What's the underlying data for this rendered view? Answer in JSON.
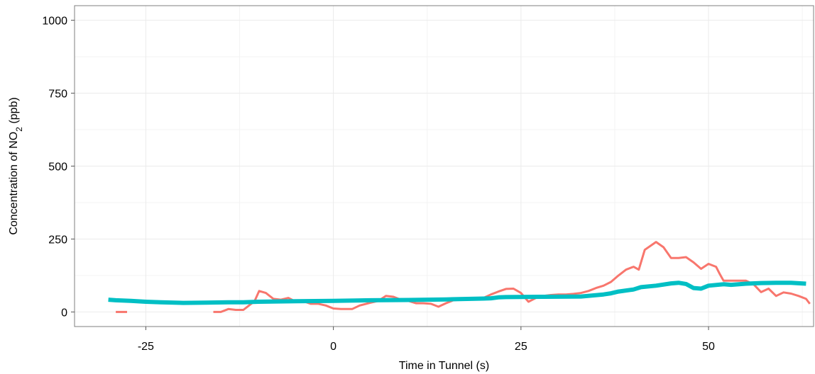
{
  "chart_data": {
    "type": "line",
    "xlabel": "Time in Tunnel (s)",
    "ylabel": {
      "prefix": "Concentration of NO",
      "subscript": "2",
      "suffix": " (ppb)"
    },
    "xlim": [
      -34.5,
      64
    ],
    "ylim": [
      -50,
      1050
    ],
    "xticks": [
      -25,
      0,
      25,
      50
    ],
    "xtick_labels": [
      "-25",
      "0",
      "25",
      "50"
    ],
    "yticks": [
      0,
      250,
      500,
      750,
      1000
    ],
    "ytick_labels": [
      "0",
      "250",
      "500",
      "750",
      "1000"
    ],
    "x_minor": [
      -12.5,
      12.5,
      37.5,
      62.5
    ],
    "y_minor": [
      125,
      375,
      625,
      875
    ],
    "grid": true,
    "colors": {
      "series1": "#F8766D",
      "series2": "#00BFC4",
      "grid": "#ebebeb",
      "frame": "#7f7f7f"
    },
    "series": [
      {
        "segments": [
          [
            [
              -29,
              0
            ],
            [
              -27.5,
              0
            ]
          ],
          [
            [
              -16,
              0
            ],
            [
              -15,
              0
            ],
            [
              -14,
              10
            ],
            [
              -13,
              7
            ],
            [
              -12,
              7
            ],
            [
              -10.5,
              37
            ],
            [
              -9.9,
              72
            ],
            [
              -9,
              65
            ],
            [
              -8,
              45
            ],
            [
              -7,
              42
            ],
            [
              -6,
              48
            ],
            [
              -5,
              35
            ],
            [
              -4,
              37
            ],
            [
              -3,
              28
            ],
            [
              -2,
              28
            ],
            [
              -1,
              22
            ],
            [
              0,
              12
            ],
            [
              1,
              10
            ],
            [
              2,
              10
            ],
            [
              2.5,
              10
            ],
            [
              3.5,
              22
            ],
            [
              5,
              32
            ],
            [
              6,
              38
            ],
            [
              7,
              55
            ],
            [
              8,
              52
            ],
            [
              9,
              42
            ],
            [
              10,
              38
            ],
            [
              11,
              30
            ],
            [
              12,
              30
            ],
            [
              13,
              28
            ],
            [
              14,
              18
            ],
            [
              15,
              30
            ],
            [
              16,
              40
            ],
            [
              17,
              42
            ],
            [
              18,
              42
            ],
            [
              19,
              44
            ],
            [
              20,
              48
            ],
            [
              21,
              60
            ],
            [
              22,
              70
            ],
            [
              23,
              79
            ],
            [
              24,
              80
            ],
            [
              25,
              65
            ],
            [
              26,
              35
            ],
            [
              27,
              48
            ],
            [
              28,
              55
            ],
            [
              29,
              58
            ],
            [
              30,
              60
            ],
            [
              31,
              60
            ],
            [
              32,
              62
            ],
            [
              33,
              65
            ],
            [
              34,
              72
            ],
            [
              35,
              82
            ],
            [
              36,
              90
            ],
            [
              37,
              103
            ],
            [
              38,
              125
            ],
            [
              39,
              145
            ],
            [
              40,
              155
            ],
            [
              40.7,
              145
            ],
            [
              41.5,
              213
            ],
            [
              43,
              240
            ],
            [
              44,
              222
            ],
            [
              45,
              185
            ],
            [
              46,
              185
            ],
            [
              47,
              188
            ],
            [
              48,
              170
            ],
            [
              49,
              148
            ],
            [
              50,
              165
            ],
            [
              51,
              155
            ],
            [
              51.5,
              130
            ],
            [
              52,
              107
            ],
            [
              53,
              107
            ],
            [
              54,
              107
            ],
            [
              55,
              107
            ],
            [
              56,
              95
            ],
            [
              57,
              68
            ],
            [
              58,
              80
            ],
            [
              59,
              55
            ],
            [
              60,
              67
            ],
            [
              61,
              63
            ],
            [
              62,
              55
            ],
            [
              63,
              45
            ],
            [
              63.5,
              28
            ]
          ]
        ]
      },
      {
        "points": [
          [
            -30,
            42
          ],
          [
            -29,
            40
          ],
          [
            -27,
            38
          ],
          [
            -25,
            35
          ],
          [
            -23,
            33
          ],
          [
            -20,
            31
          ],
          [
            -17,
            32
          ],
          [
            -14,
            33
          ],
          [
            -12,
            33
          ],
          [
            -10,
            35
          ],
          [
            -5,
            37
          ],
          [
            0,
            38
          ],
          [
            5,
            40
          ],
          [
            10,
            41
          ],
          [
            15,
            43
          ],
          [
            20,
            46
          ],
          [
            21,
            47
          ],
          [
            22,
            50
          ],
          [
            23,
            51
          ],
          [
            28,
            52
          ],
          [
            33,
            53
          ],
          [
            36,
            60
          ],
          [
            37,
            64
          ],
          [
            38,
            70
          ],
          [
            40,
            77
          ],
          [
            41,
            85
          ],
          [
            43,
            90
          ],
          [
            45,
            98
          ],
          [
            46,
            100
          ],
          [
            47,
            96
          ],
          [
            48,
            82
          ],
          [
            49,
            80
          ],
          [
            50,
            90
          ],
          [
            52,
            95
          ],
          [
            53,
            93
          ],
          [
            55,
            97
          ],
          [
            57,
            99
          ],
          [
            59,
            100
          ],
          [
            61,
            100
          ],
          [
            63,
            97
          ]
        ]
      }
    ]
  }
}
